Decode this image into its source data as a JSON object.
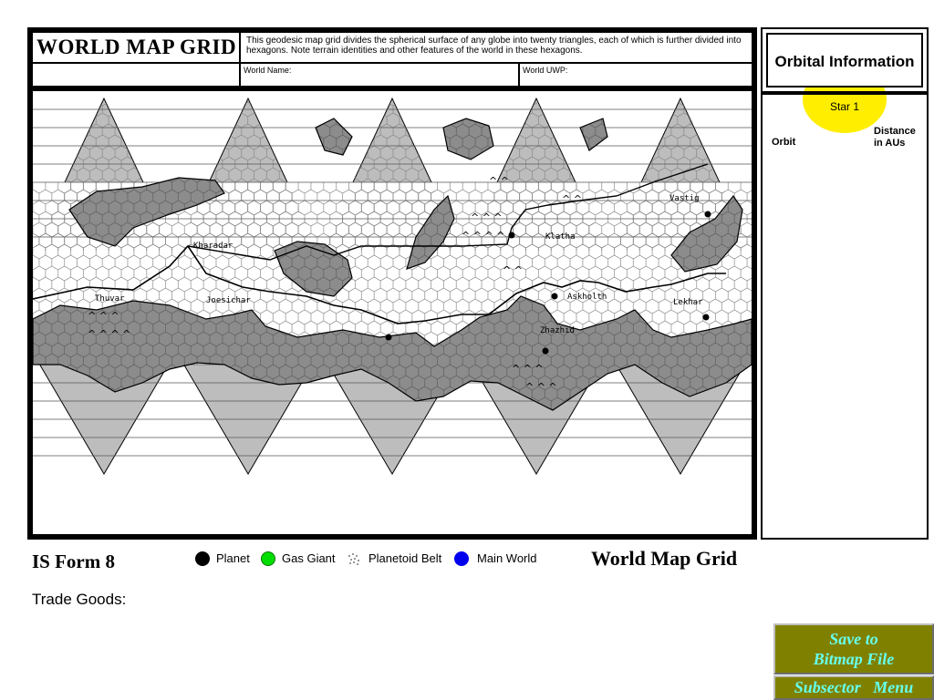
{
  "form": {
    "title": "WORLD MAP GRID",
    "description": "This geodesic map grid divides the spherical surface of any globe into twenty triangles, each of which is further divided into hexagons.  Note terrain identities and other features of the world in these hexagons.",
    "world_name_label": "World Name:",
    "world_uwp_label": "World UWP:"
  },
  "map": {
    "places": [
      "Vastig",
      "Kharadar",
      "Klatha",
      "Thuvar",
      "Joesichar",
      "Askholth",
      "Lekhar",
      "Zhazhid"
    ]
  },
  "orbital": {
    "title": "Orbital Information",
    "star_label": "Star 1",
    "orbit_label": "Orbit",
    "distance_label_1": "Distance",
    "distance_label_2": "in AUs",
    "star_color": "#ffee00"
  },
  "footer": {
    "form_id": "IS Form 8",
    "form_name": "World Map Grid",
    "trade_goods_label": "Trade Goods:"
  },
  "legend": [
    {
      "label": "Planet",
      "color": "#000000",
      "icon": "planet-icon"
    },
    {
      "label": "Gas Giant",
      "color": "#00dd00",
      "icon": "gas-giant-icon"
    },
    {
      "label": "Planetoid Belt",
      "color": "#888888",
      "icon": "planetoid-belt-icon"
    },
    {
      "label": "Main World",
      "color": "#0000ee",
      "icon": "main-world-icon"
    }
  ],
  "buttons": {
    "save_line1": "Save to",
    "save_line2": "Bitmap File",
    "subsector": "Subsector   Menu"
  },
  "colors": {
    "button_bg": "#808000",
    "button_text": "#66ffee",
    "land": "#8c8c8c",
    "sea": "#ffffff"
  }
}
